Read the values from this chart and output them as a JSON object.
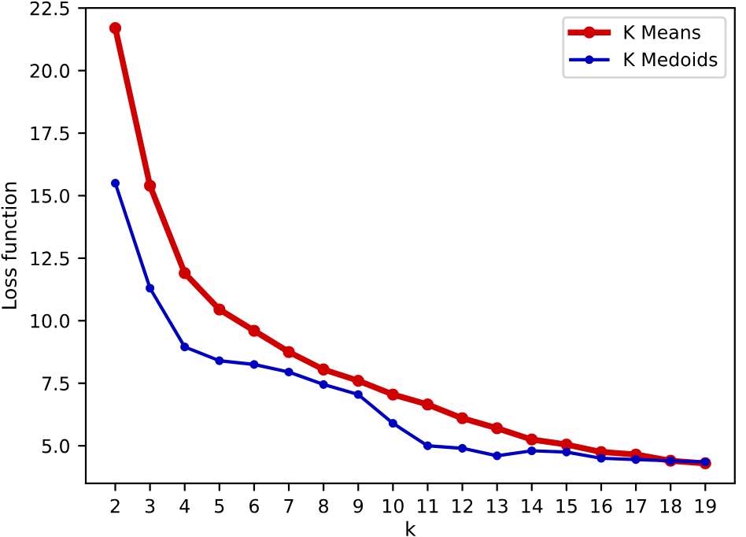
{
  "chart_data": {
    "type": "line",
    "xlabel": "k",
    "ylabel": "Loss function",
    "x": [
      2,
      3,
      4,
      5,
      6,
      7,
      8,
      9,
      10,
      11,
      12,
      13,
      14,
      15,
      16,
      17,
      18,
      19
    ],
    "series": [
      {
        "name": "K Means",
        "color": "#d00000",
        "values": [
          21.7,
          15.4,
          11.9,
          10.45,
          9.6,
          8.75,
          8.05,
          7.6,
          7.05,
          6.65,
          6.1,
          5.7,
          5.25,
          5.05,
          4.75,
          4.65,
          4.4,
          4.3
        ]
      },
      {
        "name": "K Medoids",
        "color": "#0000c0",
        "values": [
          15.5,
          11.3,
          8.95,
          8.4,
          8.25,
          7.95,
          7.45,
          7.05,
          5.9,
          5.0,
          4.9,
          4.6,
          4.8,
          4.75,
          4.5,
          4.45,
          4.4,
          4.35
        ]
      }
    ],
    "xlim": [
      1.15,
      19.85
    ],
    "ylim": [
      3.5,
      22.5
    ],
    "xticks": [
      2,
      3,
      4,
      5,
      6,
      7,
      8,
      9,
      10,
      11,
      12,
      13,
      14,
      15,
      16,
      17,
      18,
      19
    ],
    "yticks": [
      {
        "value": 5.0,
        "label": "5.0"
      },
      {
        "value": 7.5,
        "label": "7.5"
      },
      {
        "value": 10.0,
        "label": "10.0"
      },
      {
        "value": 12.5,
        "label": "12.5"
      },
      {
        "value": 15.0,
        "label": "15.0"
      },
      {
        "value": 17.5,
        "label": "17.5"
      },
      {
        "value": 20.0,
        "label": "20.0"
      },
      {
        "value": 22.5,
        "label": "22.5"
      }
    ],
    "legend": "top right",
    "marker": "circle",
    "line_style": "solid",
    "grid": false
  }
}
